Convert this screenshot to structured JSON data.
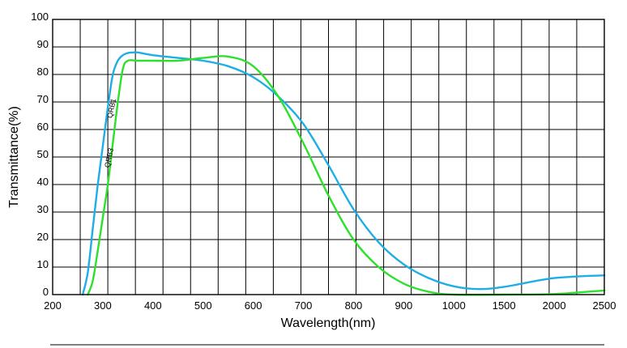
{
  "chart_data": {
    "type": "line",
    "xlabel": "Wavelength(nm)",
    "ylabel": "Transmittance(%)",
    "x_ticks": [
      "200",
      "300",
      "400",
      "500",
      "600",
      "700",
      "800",
      "900",
      "1000",
      "1500",
      "2000",
      "2500"
    ],
    "y_ticks": [
      "0",
      "10",
      "20",
      "30",
      "40",
      "50",
      "60",
      "70",
      "80",
      "90",
      "100"
    ],
    "ylim": [
      0,
      100
    ],
    "grid": true,
    "x_scale_note": "piecewise axis: 200-1000 nm in 100 nm steps, then 1000-2500 nm in 500 nm steps, equal spacing per tick",
    "series": [
      {
        "name": "QRB1",
        "color": "#1eaee6",
        "points": [
          [
            260,
            0
          ],
          [
            270,
            8
          ],
          [
            280,
            24
          ],
          [
            290,
            40
          ],
          [
            300,
            54
          ],
          [
            310,
            68
          ],
          [
            320,
            80
          ],
          [
            330,
            85
          ],
          [
            340,
            87
          ],
          [
            350,
            87.8
          ],
          [
            360,
            88
          ],
          [
            370,
            88
          ],
          [
            400,
            87
          ],
          [
            450,
            86
          ],
          [
            500,
            85
          ],
          [
            550,
            83
          ],
          [
            600,
            79
          ],
          [
            650,
            72
          ],
          [
            700,
            62
          ],
          [
            750,
            47
          ],
          [
            800,
            31
          ],
          [
            850,
            19
          ],
          [
            900,
            11
          ],
          [
            950,
            6
          ],
          [
            1000,
            3
          ],
          [
            1250,
            2
          ],
          [
            1500,
            2.8
          ],
          [
            2000,
            6
          ],
          [
            2500,
            7
          ]
        ]
      },
      {
        "name": "QRB3",
        "color": "#2ee02e",
        "points": [
          [
            270,
            0
          ],
          [
            280,
            5
          ],
          [
            290,
            16
          ],
          [
            300,
            28
          ],
          [
            310,
            40
          ],
          [
            320,
            55
          ],
          [
            330,
            70
          ],
          [
            340,
            82
          ],
          [
            350,
            85
          ],
          [
            370,
            85
          ],
          [
            400,
            85
          ],
          [
            450,
            85
          ],
          [
            500,
            86
          ],
          [
            550,
            86.5
          ],
          [
            600,
            83
          ],
          [
            650,
            72
          ],
          [
            700,
            55
          ],
          [
            750,
            36
          ],
          [
            800,
            20
          ],
          [
            850,
            10
          ],
          [
            900,
            4
          ],
          [
            950,
            1
          ],
          [
            1000,
            0
          ],
          [
            1500,
            0
          ],
          [
            2000,
            0.2
          ],
          [
            2500,
            1.5
          ]
        ]
      }
    ]
  }
}
